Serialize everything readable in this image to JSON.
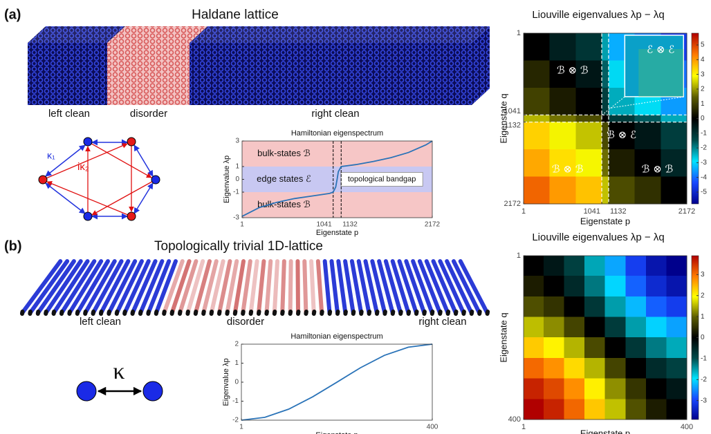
{
  "panels": [
    {
      "label": "(a)",
      "title": "Haldane lattice",
      "regions": [
        "left clean",
        "disorder",
        "right clean"
      ],
      "couplings": [
        "κ₁",
        "iκ₂"
      ]
    },
    {
      "label": "(b)",
      "title": "Topologically trivial 1D-lattice",
      "regions": [
        "left clean",
        "disorder",
        "right clean"
      ],
      "couplings": [
        "κ"
      ]
    }
  ],
  "chart_data": [
    {
      "type": "line",
      "title": "Hamiltonian eigenspectrum",
      "x_label": "Eigenstate p",
      "y_label": "Eigenvalue λp",
      "x": [
        1,
        200,
        400,
        600,
        800,
        1000,
        1041,
        1070,
        1086,
        1100,
        1132,
        1300,
        1500,
        1700,
        1900,
        2100,
        2172
      ],
      "values": [
        -2.9,
        -2.2,
        -1.8,
        -1.5,
        -1.3,
        -1.1,
        -1.0,
        -0.6,
        0,
        0.6,
        1.0,
        1.15,
        1.4,
        1.7,
        2.1,
        2.7,
        3.0
      ],
      "color": "#2a73b8",
      "xlim": [
        1,
        2172
      ],
      "ylim": [
        -3,
        3
      ],
      "xticks": [
        1,
        1041,
        1132,
        2172
      ],
      "yticks": [
        -3,
        -1,
        0,
        1,
        3
      ],
      "guides": [
        1041,
        1132
      ],
      "bands": [
        {
          "from": 1,
          "to": 3,
          "color": "#f6c6c6",
          "label": "bulk-states ℬ"
        },
        {
          "from": -1,
          "to": 1,
          "color": "#c8c8f2",
          "label": "edge states ℰ"
        },
        {
          "from": -3,
          "to": -1,
          "color": "#f6c6c6",
          "label": "bulk-states ℬ"
        }
      ],
      "annotations": [
        "topological bandgap"
      ]
    },
    {
      "type": "heatmap",
      "title": "Liouville eigenvalues λp − λq",
      "x_label": "Eigenstate p",
      "y_label": "Eigenstate q",
      "xbins": [
        1,
        348,
        695,
        1041,
        1132,
        1479,
        1826,
        2172
      ],
      "ybins": [
        1,
        348,
        695,
        1041,
        1132,
        1479,
        1826,
        2172
      ],
      "values": [
        [
          0,
          -0.6,
          -1.03,
          -2.25,
          -3.4,
          -3.85,
          -4.6
        ],
        [
          0.6,
          0,
          -0.43,
          -1.65,
          -2.8,
          -3.25,
          -4.0
        ],
        [
          1.03,
          0.43,
          0,
          -1.22,
          -2.37,
          -2.82,
          -3.57
        ],
        [
          2.25,
          1.65,
          1.22,
          0,
          -1.15,
          -1.6,
          -2.35
        ],
        [
          3.4,
          2.8,
          2.37,
          1.15,
          0,
          -0.45,
          -1.2
        ],
        [
          3.85,
          3.25,
          2.82,
          1.6,
          0.45,
          0,
          -0.75
        ],
        [
          4.6,
          4.0,
          3.57,
          2.35,
          1.2,
          0.75,
          0
        ]
      ],
      "xlim": [
        1,
        2172
      ],
      "ylim": [
        1,
        2172
      ],
      "xticks": [
        1,
        1041,
        1132,
        2172
      ],
      "yticks": [
        1,
        1041,
        1132,
        2172
      ],
      "guides": [
        1041,
        1132
      ],
      "clim": [
        -5.8,
        5.8
      ],
      "cbar_ticks": [
        -5,
        -4,
        -3,
        -2,
        -1,
        0,
        1,
        2,
        3,
        4,
        5
      ],
      "colormap": [
        "#00008c",
        "#1848ff",
        "#00e4ff",
        "#004a4a",
        "#000000",
        "#5c5c00",
        "#ffff00",
        "#ff7a00",
        "#b00000"
      ],
      "annotations": [
        "ℬ ⊗ ℬ",
        "ℰ ⊗ ℰ",
        "ℬ ⊗ ℰ",
        "ℬ ⊗ ℬ",
        "ℬ ⊗ ℬ"
      ]
    },
    {
      "type": "line",
      "title": "Hamiltonian eigenspectrum",
      "x_label": "Eigenstate p",
      "y_label": "Eigenvalue λp",
      "x": [
        1,
        50,
        100,
        150,
        200,
        250,
        300,
        350,
        400
      ],
      "values": [
        -2.0,
        -1.85,
        -1.42,
        -0.77,
        -0.01,
        0.76,
        1.41,
        1.84,
        2.0
      ],
      "color": "#2a73b8",
      "xlim": [
        1,
        400
      ],
      "ylim": [
        -2,
        2
      ],
      "xticks": [
        1,
        400
      ],
      "yticks": [
        -2,
        -1,
        0,
        1,
        2
      ]
    },
    {
      "type": "heatmap",
      "title": "Liouville eigenvalues λp − λq",
      "x_label": "Eigenstate p",
      "y_label": "Eigenstate q",
      "xbins": [
        1,
        50,
        100,
        150,
        200,
        250,
        300,
        350,
        400
      ],
      "ybins": [
        1,
        50,
        100,
        150,
        200,
        250,
        300,
        350,
        400
      ],
      "values": [
        [
          0,
          -0.3,
          -0.84,
          -1.56,
          -2.34,
          -3.06,
          -3.62,
          -3.92
        ],
        [
          0.3,
          0,
          -0.54,
          -1.26,
          -2.04,
          -2.76,
          -3.32,
          -3.62
        ],
        [
          0.84,
          0.54,
          0,
          -0.72,
          -1.5,
          -2.22,
          -2.78,
          -3.08
        ],
        [
          1.56,
          1.26,
          0.72,
          0,
          -0.78,
          -1.5,
          -2.06,
          -2.36
        ],
        [
          2.34,
          2.04,
          1.5,
          0.78,
          0,
          -0.72,
          -1.28,
          -1.58
        ],
        [
          3.06,
          2.76,
          2.22,
          1.5,
          0.72,
          0,
          -0.56,
          -0.86
        ],
        [
          3.62,
          3.32,
          2.78,
          2.06,
          1.28,
          0.56,
          0,
          -0.3
        ],
        [
          3.92,
          3.62,
          3.08,
          2.36,
          1.58,
          0.86,
          0.3,
          0
        ]
      ],
      "xlim": [
        1,
        400
      ],
      "ylim": [
        1,
        400
      ],
      "xticks": [
        1,
        400
      ],
      "yticks": [
        1,
        400
      ],
      "clim": [
        -3.9,
        3.9
      ],
      "cbar_ticks": [
        -3,
        -2,
        -1,
        0,
        1,
        2,
        3
      ],
      "colormap": [
        "#00008c",
        "#1848ff",
        "#00e4ff",
        "#004a4a",
        "#000000",
        "#5c5c00",
        "#ffff00",
        "#ff7a00",
        "#b00000"
      ]
    }
  ]
}
